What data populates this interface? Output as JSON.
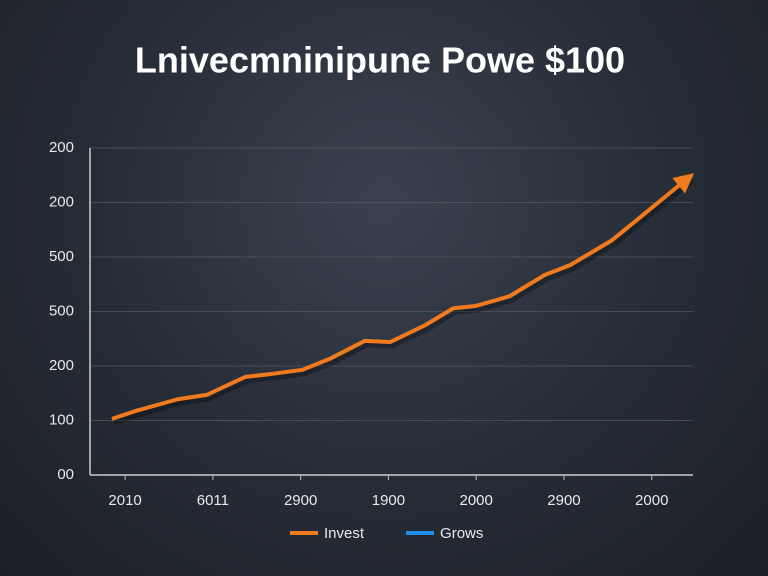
{
  "chart_data": {
    "type": "line",
    "title": "Lnivecmninipune Powe $100",
    "xlim": [
      -0.4,
      6.47
    ],
    "xticks": [
      {
        "value": 0,
        "label": "2010"
      },
      {
        "value": 1,
        "label": "6011"
      },
      {
        "value": 2,
        "label": "2900"
      },
      {
        "value": 3,
        "label": "1900"
      },
      {
        "value": 4,
        "label": "2000"
      },
      {
        "value": 5,
        "label": "2900"
      },
      {
        "value": 6,
        "label": "2000"
      }
    ],
    "ylim": [
      0,
      6
    ],
    "yticks": [
      {
        "value": 0,
        "label": "00"
      },
      {
        "value": 1,
        "label": "100"
      },
      {
        "value": 2,
        "label": "200"
      },
      {
        "value": 3,
        "label": "500"
      },
      {
        "value": 4,
        "label": "500"
      },
      {
        "value": 5,
        "label": "200"
      },
      {
        "value": 6,
        "label": "200"
      }
    ],
    "grid": true,
    "series": [
      {
        "name": "Invest",
        "color": "#f07a1e",
        "x": [
          -0.15,
          0.11,
          0.6,
          0.93,
          1.37,
          1.65,
          2.02,
          2.33,
          2.73,
          3.02,
          3.42,
          3.74,
          3.99,
          4.38,
          4.78,
          5.07,
          5.55,
          6.43
        ],
        "values": [
          1.03,
          1.17,
          1.39,
          1.47,
          1.8,
          1.85,
          1.93,
          2.13,
          2.46,
          2.44,
          2.75,
          3.06,
          3.1,
          3.28,
          3.67,
          3.85,
          4.31,
          5.47
        ]
      }
    ],
    "legend": [
      {
        "name": "Invest",
        "color": "#f07a1e"
      },
      {
        "name": "Grows",
        "color": "#1e8ee8"
      }
    ]
  }
}
